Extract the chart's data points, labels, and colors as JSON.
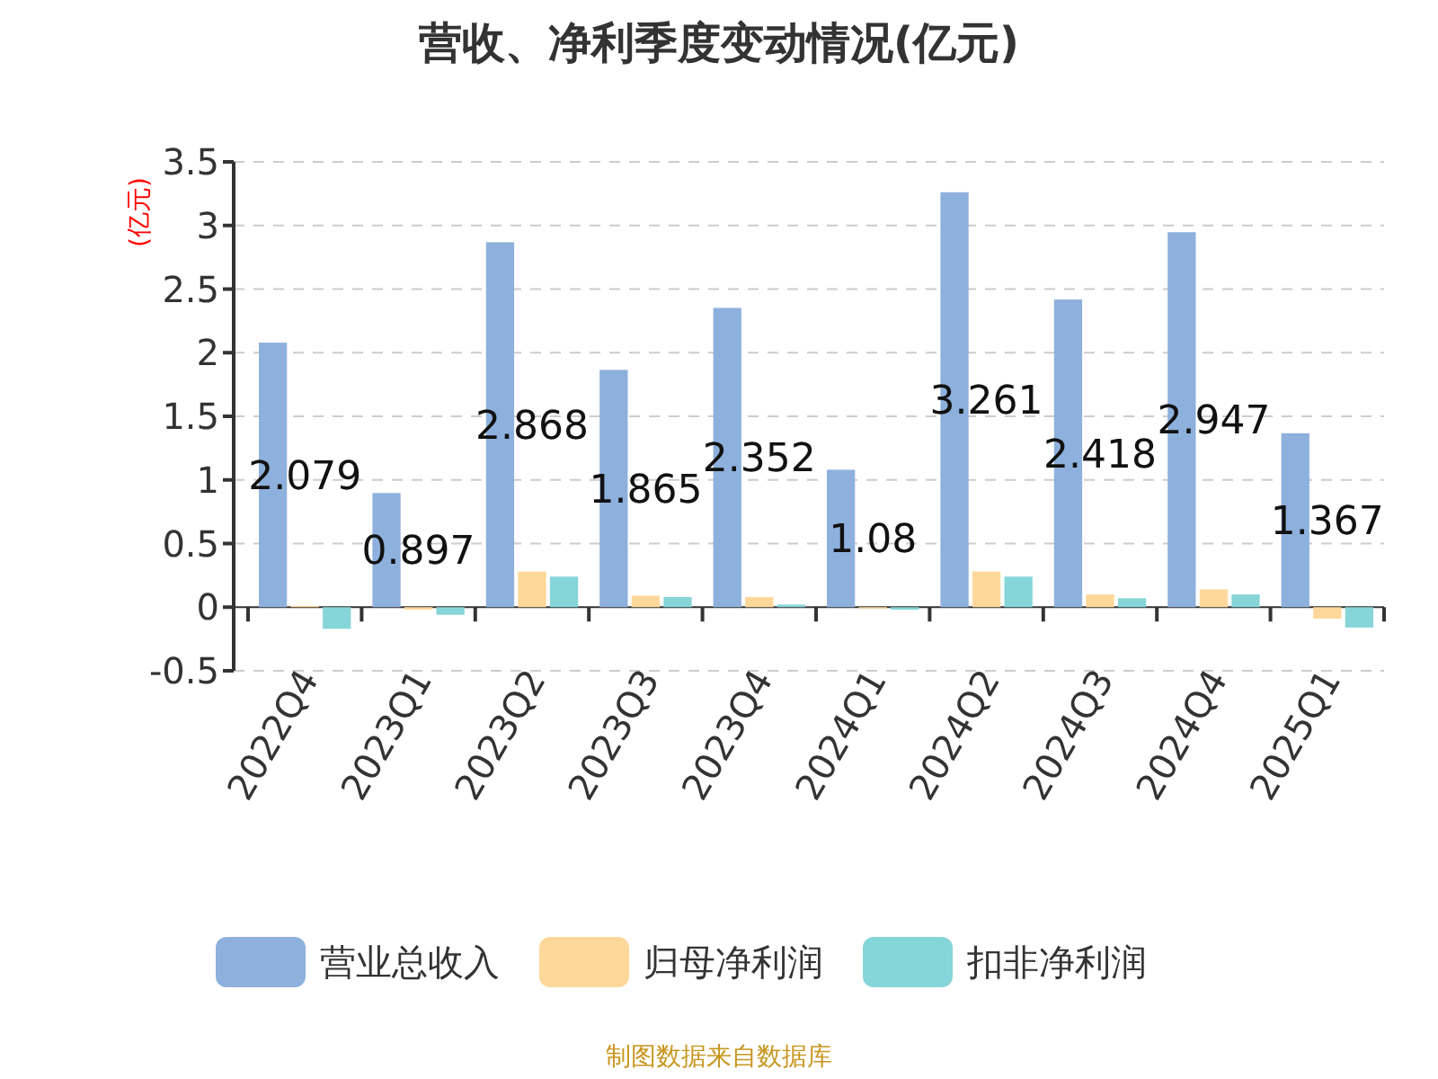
{
  "chart_data": {
    "type": "bar",
    "title": "营收、净利季度变动情况(亿元)",
    "ylabel": "(亿元)",
    "categories": [
      "2022Q4",
      "2023Q1",
      "2023Q2",
      "2023Q3",
      "2023Q4",
      "2024Q1",
      "2024Q2",
      "2024Q3",
      "2024Q4",
      "2025Q1"
    ],
    "series": [
      {
        "name": "营业总收入",
        "color": "#8eb0dc",
        "values": [
          2.079,
          0.897,
          2.868,
          1.865,
          2.352,
          1.08,
          3.261,
          2.418,
          2.947,
          1.367
        ],
        "value_labels": [
          "2.079",
          "0.897",
          "2.868",
          "1.865",
          "2.352",
          "1.08",
          "3.261",
          "2.418",
          "2.947",
          "1.367"
        ]
      },
      {
        "name": "归母净利润",
        "color": "#fed89a",
        "values": [
          0.01,
          -0.02,
          0.28,
          0.09,
          0.08,
          -0.01,
          0.28,
          0.1,
          0.14,
          -0.09
        ]
      },
      {
        "name": "扣非净利润",
        "color": "#86d5d8",
        "values": [
          -0.17,
          -0.06,
          0.24,
          0.08,
          0.02,
          -0.02,
          0.24,
          0.07,
          0.1,
          -0.16
        ]
      }
    ],
    "ylim": [
      -0.5,
      3.5
    ],
    "yticks": [
      -0.5,
      0,
      0.5,
      1,
      1.5,
      2,
      2.5,
      3,
      3.5
    ],
    "grid": "y",
    "legend": "bottom",
    "annotations": [
      "制图数据来自数据库"
    ]
  }
}
